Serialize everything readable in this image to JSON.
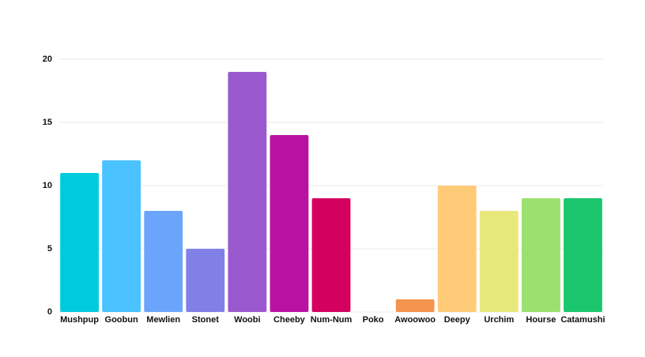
{
  "chart_data": {
    "type": "bar",
    "categories": [
      "Mushpup",
      "Goobun",
      "Mewlien",
      "Stonet",
      "Woobi",
      "Cheeby",
      "Num-Num",
      "Poko",
      "Awoowoo",
      "Deepy",
      "Urchim",
      "Hourse",
      "Catamushi"
    ],
    "values": [
      11,
      12,
      8,
      5,
      19,
      14,
      9,
      0,
      1,
      10,
      8,
      9,
      9
    ],
    "colors": [
      "#00cbdd",
      "#49c2ff",
      "#6aa5fb",
      "#8180e6",
      "#9b59cf",
      "#b912a3",
      "#d4005f",
      "#f05a5a",
      "#f5944f",
      "#ffcb78",
      "#e7e87b",
      "#9ce06f",
      "#1bc66f"
    ],
    "ylim": [
      0,
      20
    ],
    "yticks": [
      0,
      5,
      10,
      15,
      20
    ],
    "grid": true
  }
}
